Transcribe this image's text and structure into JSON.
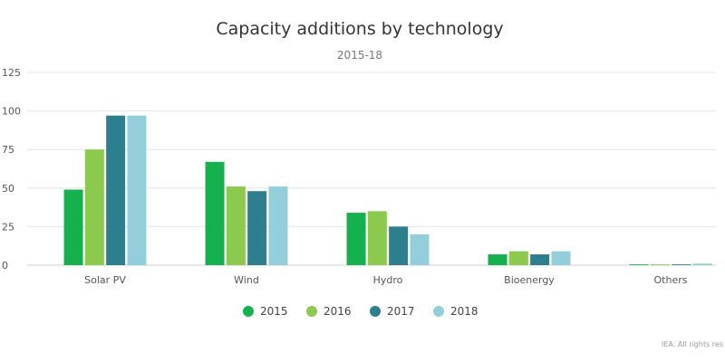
{
  "chart_data": {
    "type": "bar",
    "title": "Capacity additions by technology",
    "subtitle": "2015-18",
    "xlabel": "",
    "ylabel": "",
    "ylim": [
      0,
      125
    ],
    "yticks": [
      0,
      25,
      50,
      75,
      100,
      125
    ],
    "grid": true,
    "legend_position": "bottom-center",
    "categories": [
      "Solar PV",
      "Wind",
      "Hydro",
      "Bioenergy",
      "Others"
    ],
    "series": [
      {
        "name": "2015",
        "color": "#16b14f",
        "values": [
          49,
          67,
          34,
          7,
          0.5
        ]
      },
      {
        "name": "2016",
        "color": "#8cc94f",
        "values": [
          75,
          51,
          35,
          9,
          0.5
        ]
      },
      {
        "name": "2017",
        "color": "#2e7f8e",
        "values": [
          97,
          48,
          25,
          7,
          0.5
        ]
      },
      {
        "name": "2018",
        "color": "#94cedb",
        "values": [
          97,
          51,
          20,
          9,
          1
        ]
      }
    ],
    "credit": "IEA. All rights res"
  }
}
